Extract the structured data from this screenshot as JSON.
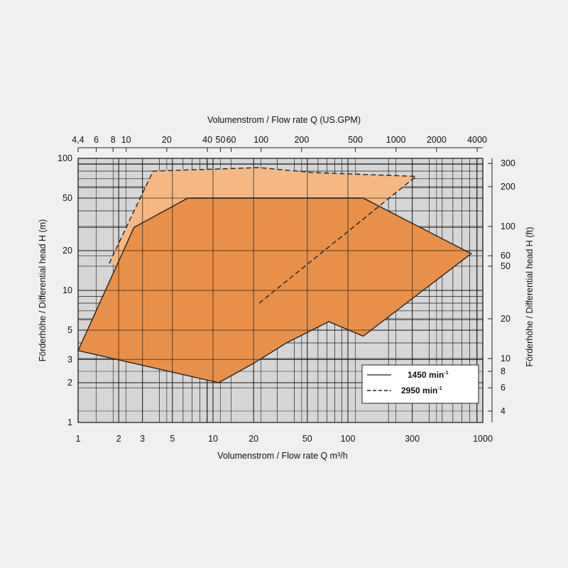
{
  "chart_data": {
    "type": "area",
    "x_scale": "log",
    "y_scale": "log",
    "xlim": [
      1,
      1000
    ],
    "ylim": [
      1,
      100
    ],
    "grid": true,
    "legend_placement": "bottom-right",
    "colors": {
      "background": "#f0f0f0",
      "plot_background": "#d6d6d6",
      "grid": "#1a1a1a",
      "area_1450": "#e8904a",
      "area_2950": "#f5b884",
      "outline": "#222222"
    },
    "xlabel": "Volumenstrom / Flow rate Q m³/h",
    "ylabel": "Förderhöhe / Differential head H (m)",
    "x2label": "Volumenstrom / Flow rate Q (US.GPM)",
    "y2label": "Förderhöhe / Differential head H (ft)",
    "x_ticks": [
      1,
      2,
      3,
      5,
      10,
      20,
      50,
      100,
      300,
      1000
    ],
    "x_tick_labels": [
      "1",
      "2",
      "3",
      "5",
      "10",
      "20",
      "50",
      "100",
      "300",
      "1000"
    ],
    "y_ticks": [
      1,
      2,
      3,
      5,
      10,
      20,
      50,
      100
    ],
    "y_tick_labels": [
      "1",
      "2",
      "3",
      "5",
      "10",
      "20",
      "50",
      "100"
    ],
    "x2_ticks": [
      4.4,
      6,
      8,
      10,
      20,
      40,
      50,
      60,
      100,
      200,
      500,
      1000,
      2000,
      4000
    ],
    "x2_tick_labels": [
      "4,4",
      "6",
      "8",
      "10",
      "20",
      "40",
      "50",
      "60",
      "100",
      "200",
      "500",
      "1000",
      "2000",
      "4000"
    ],
    "y2_ticks": [
      4,
      6,
      8,
      10,
      20,
      50,
      60,
      100,
      200,
      300
    ],
    "y2_tick_labels": [
      "4",
      "6",
      "8",
      "10",
      "20",
      "50",
      "60",
      "100",
      "200",
      "300"
    ],
    "series": [
      {
        "name": "2950",
        "unit": "min",
        "unit_exp": "-1",
        "style": "dashed",
        "points": [
          [
            1.7,
            16
          ],
          [
            2.6,
            40
          ],
          [
            3.6,
            80
          ],
          [
            22,
            85
          ],
          [
            56,
            78
          ],
          [
            320,
            73
          ],
          [
            22,
            8
          ]
        ]
      },
      {
        "name": "1450",
        "unit": "min",
        "unit_exp": "-1",
        "style": "solid",
        "points": [
          [
            1,
            3.5
          ],
          [
            2.6,
            30
          ],
          [
            6.5,
            50
          ],
          [
            130,
            50
          ],
          [
            820,
            19
          ],
          [
            130,
            4.5
          ],
          [
            72,
            5.8
          ],
          [
            35,
            4
          ],
          [
            20,
            2.8
          ],
          [
            11,
            2
          ],
          [
            1,
            3.5
          ]
        ]
      }
    ]
  }
}
